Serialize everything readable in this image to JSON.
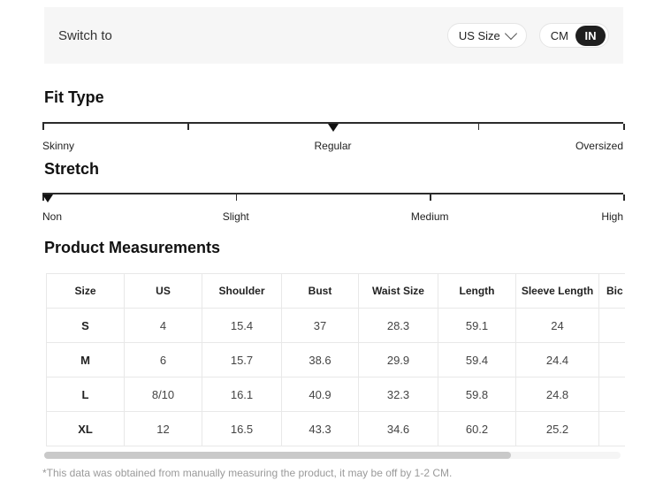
{
  "header": {
    "switch_label": "Switch to",
    "size_selector": {
      "value": "US Size"
    },
    "unit_toggle": {
      "options": [
        "CM",
        "IN"
      ],
      "selected": "IN",
      "active_bg": "#1f1f1f",
      "active_text": "#ffffff"
    }
  },
  "fit_type": {
    "title": "Fit Type",
    "selected": "Regular",
    "tick_positions_pct": [
      0,
      25,
      50,
      75,
      100
    ],
    "marker_position_pct": 50,
    "labels": [
      {
        "text": "Skinny",
        "pct": 0,
        "align": "left"
      },
      {
        "text": "Regular",
        "pct": 50,
        "align": "center"
      },
      {
        "text": "Oversized",
        "pct": 100,
        "align": "right"
      }
    ]
  },
  "stretch": {
    "title": "Stretch",
    "selected": "Non",
    "tick_positions_pct": [
      0,
      33.3,
      66.7,
      100
    ],
    "marker_position_pct": 0,
    "labels": [
      {
        "text": "Non",
        "pct": 0,
        "align": "left"
      },
      {
        "text": "Slight",
        "pct": 33.3,
        "align": "center"
      },
      {
        "text": "Medium",
        "pct": 66.7,
        "align": "center"
      },
      {
        "text": "High",
        "pct": 100,
        "align": "right"
      }
    ]
  },
  "measurements": {
    "title": "Product Measurements",
    "columns": [
      "Size",
      "US",
      "Shoulder",
      "Bust",
      "Waist Size",
      "Length",
      "Sleeve Length",
      "Bic"
    ],
    "rows": [
      [
        "S",
        "4",
        "15.4",
        "37",
        "28.3",
        "59.1",
        "24",
        ""
      ],
      [
        "M",
        "6",
        "15.7",
        "38.6",
        "29.9",
        "59.4",
        "24.4",
        ""
      ],
      [
        "L",
        "8/10",
        "16.1",
        "40.9",
        "32.3",
        "59.8",
        "24.8",
        ""
      ],
      [
        "XL",
        "12",
        "16.5",
        "43.3",
        "34.6",
        "60.2",
        "25.2",
        ""
      ]
    ],
    "footnote": "*This data was obtained from manually measuring the product, it may be off by 1-2 CM."
  }
}
